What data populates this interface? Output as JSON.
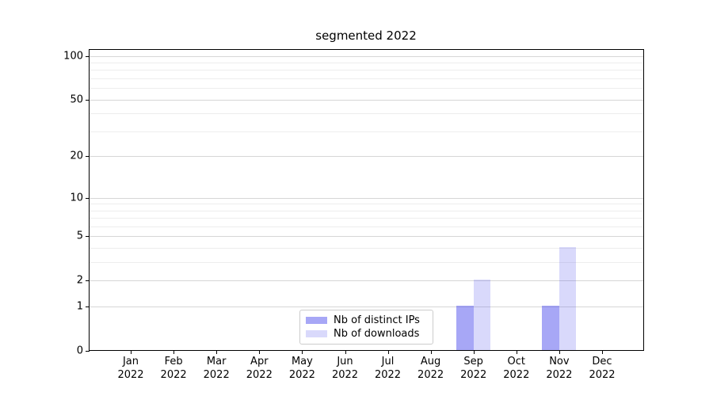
{
  "figure": {
    "title": "segmented 2022"
  },
  "chart_data": {
    "type": "bar",
    "title": "segmented 2022",
    "x_year": "2022",
    "categories": [
      "Jan",
      "Feb",
      "Mar",
      "Apr",
      "May",
      "Jun",
      "Jul",
      "Aug",
      "Sep",
      "Oct",
      "Nov",
      "Dec"
    ],
    "series": [
      {
        "name": "Nb of distinct IPs",
        "fill": "rgba(80,80,238,0.50)",
        "appearance_hex": "#aaaaf8",
        "values": [
          0,
          0,
          0,
          0,
          0,
          0,
          0,
          0,
          1,
          0,
          1,
          0
        ]
      },
      {
        "name": "Nb of downloads",
        "fill": "rgba(80,80,238,0.22)",
        "appearance_hex": "#dbdbf8",
        "values": [
          0,
          0,
          0,
          0,
          0,
          0,
          0,
          0,
          2,
          0,
          4,
          0
        ]
      }
    ],
    "yscale": "log1p",
    "ylim": [
      0,
      110
    ],
    "y_major_ticks": [
      0,
      1,
      2,
      5,
      10,
      20,
      50,
      100
    ],
    "y_minor_ticks": [
      3,
      4,
      6,
      7,
      8,
      9,
      30,
      40,
      60,
      70,
      80,
      90
    ],
    "grid": true,
    "legend_position": "lower center",
    "colors": {
      "major_grid": "#d6d6d6",
      "minor_grid": "#ededed",
      "spine": "#000000",
      "background": "#ffffff",
      "legend_border": "#cccccc"
    }
  }
}
